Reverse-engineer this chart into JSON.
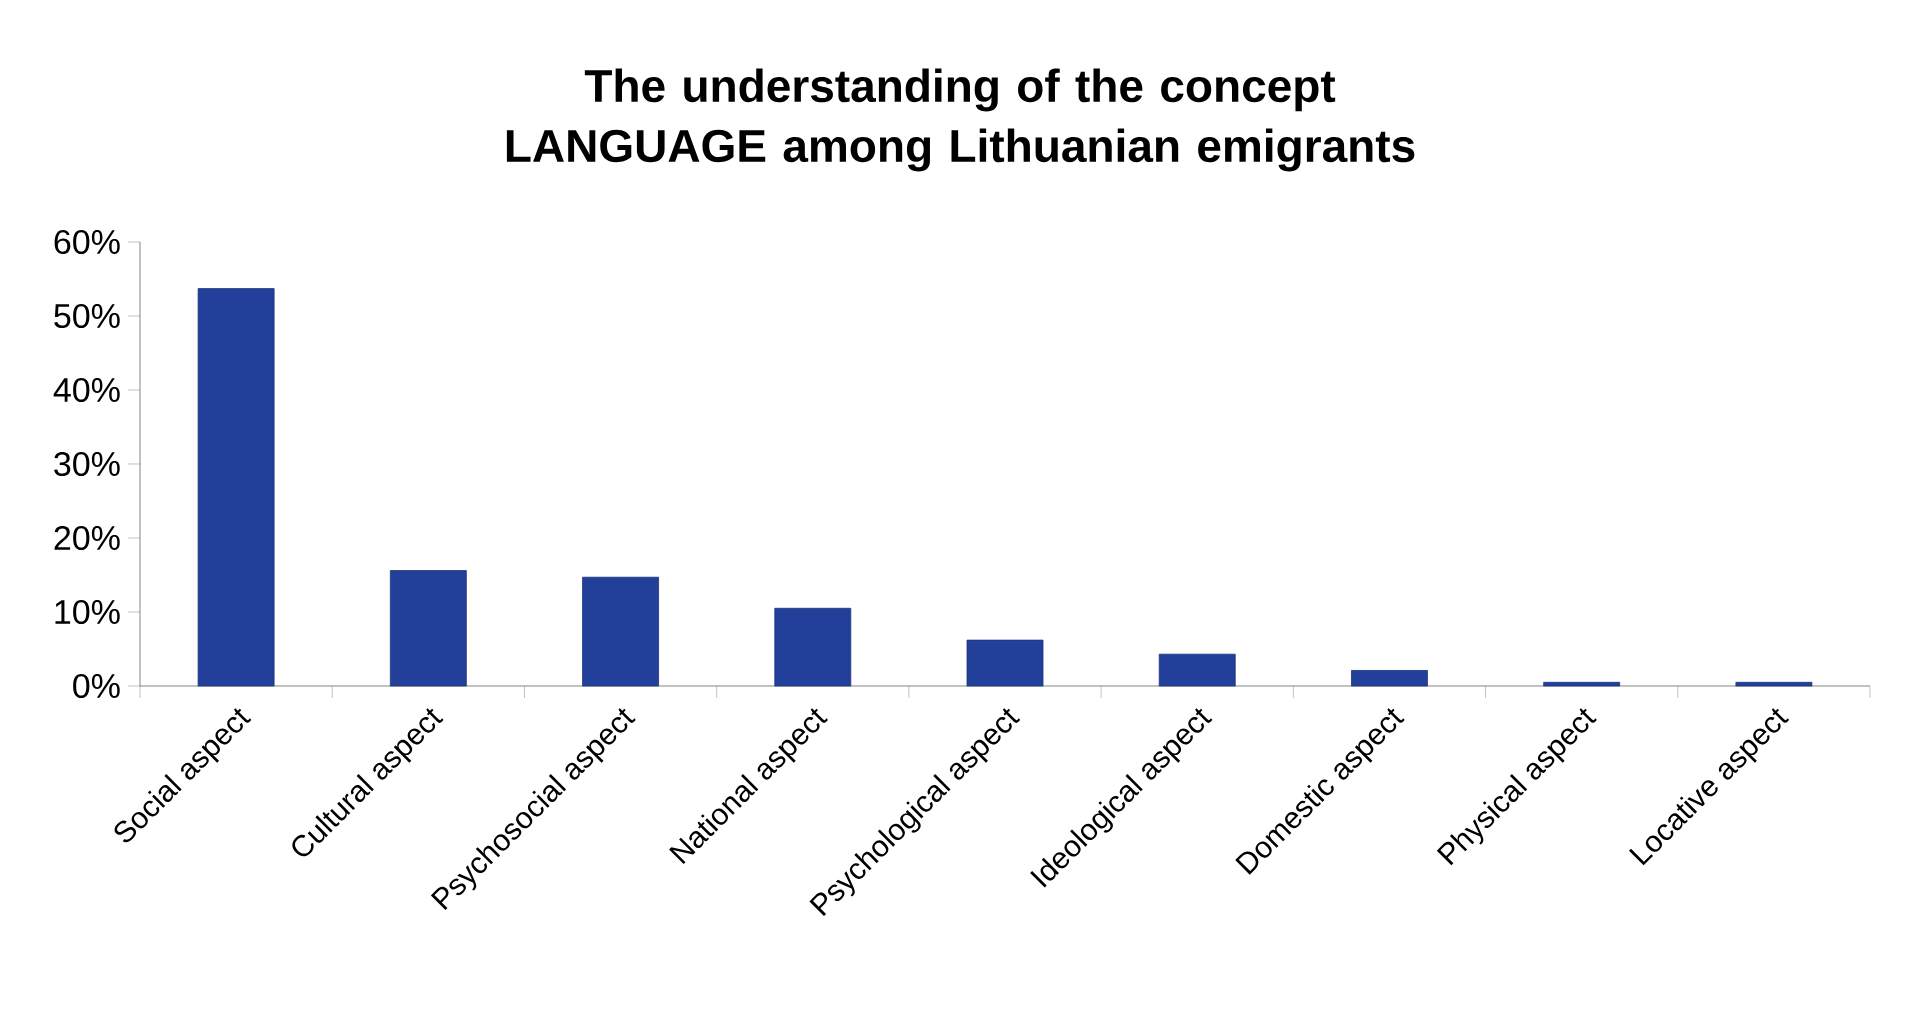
{
  "chart_data": {
    "type": "bar",
    "title": "The understanding of the concept LANGUAGE among Lithuanian emigrants",
    "categories": [
      "Social aspect",
      "Cultural aspect",
      "Psychosocial aspect",
      "National aspect",
      "Psychological aspect",
      "Ideological aspect",
      "Domestic aspect",
      "Physical aspect",
      "Locative aspect"
    ],
    "values": [
      53.7,
      15.6,
      14.7,
      10.5,
      6.2,
      4.3,
      2.1,
      0.5,
      0.5
    ],
    "color": "#22409a",
    "ylim": [
      0,
      60
    ],
    "yticks": [
      {
        "value": 0,
        "label": "0%"
      },
      {
        "value": 10,
        "label": "10%"
      },
      {
        "value": 20,
        "label": "20%"
      },
      {
        "value": 30,
        "label": "30%"
      },
      {
        "value": 40,
        "label": "40%"
      },
      {
        "value": 50,
        "label": "50%"
      },
      {
        "value": 60,
        "label": "60%"
      }
    ],
    "grid": false
  }
}
